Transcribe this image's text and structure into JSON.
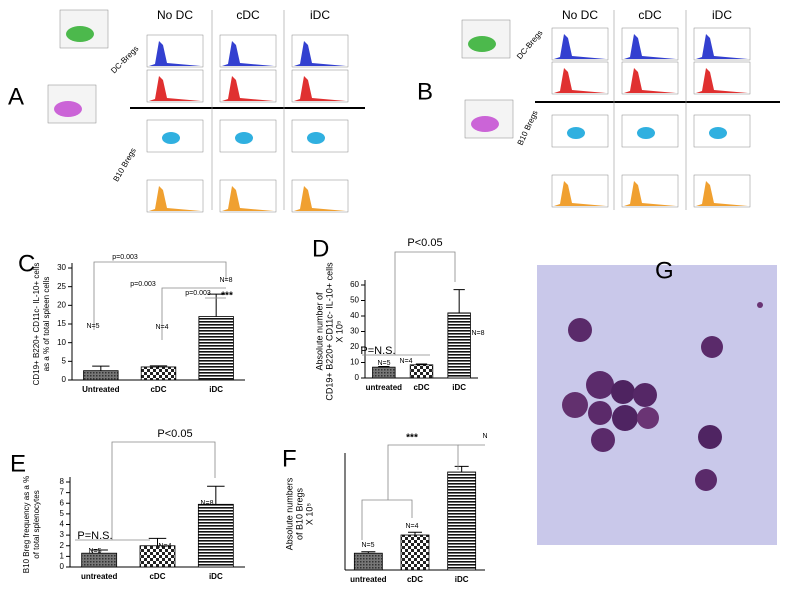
{
  "figure": {
    "panel_a": {
      "label": "A",
      "columns": [
        "No DC",
        "cDC",
        "iDC"
      ],
      "rows": [
        "DC-Bregs",
        "B10 Bregs"
      ]
    },
    "panel_b": {
      "label": "B",
      "columns": [
        "No DC",
        "cDC",
        "iDC"
      ],
      "rows": [
        "DC-Bregs",
        "B10 Bregs"
      ]
    },
    "panel_g": {
      "label": "G"
    }
  },
  "chart_data": [
    {
      "type": "bar",
      "panel": "C",
      "y_label": [
        "CD19+ B220+ CD11c- IL-10+ cells",
        "as a % of total spleen cells"
      ],
      "categories": [
        "Untreated",
        "cDC",
        "iDC"
      ],
      "values": [
        2.5,
        3.5,
        17
      ],
      "errors": [
        1.2,
        0.3,
        6
      ],
      "fills": [
        "dots",
        "checks",
        "stripes"
      ],
      "ylim": [
        0,
        30
      ],
      "yticks": [
        0,
        5,
        10,
        15,
        20,
        25,
        30
      ],
      "annotations": [
        "p=0.003",
        "p=0.003",
        "p=0.003",
        "***",
        "N=5",
        "N=4",
        "N=8"
      ]
    },
    {
      "type": "bar",
      "panel": "D",
      "y_label": [
        "Absolute number of",
        "CD19+ B220+ CD11c- IL-10+ cells",
        "X 10⁵"
      ],
      "categories": [
        "untreated",
        "cDC",
        "iDC"
      ],
      "values": [
        7,
        8.5,
        42
      ],
      "errors": [
        0.4,
        0.5,
        15
      ],
      "fills": [
        "dots",
        "checks",
        "stripes"
      ],
      "ylim": [
        0,
        60
      ],
      "yticks": [
        0,
        10,
        20,
        30,
        40,
        50,
        60
      ],
      "annotations": [
        "P<0.05",
        "P=N.S.",
        "N=5",
        "N=4",
        "N=8"
      ]
    },
    {
      "type": "bar",
      "panel": "E",
      "y_label": [
        "B10 Breg frequency as a %",
        "of total splenocytes"
      ],
      "categories": [
        "untreated",
        "cDC",
        "iDC"
      ],
      "values": [
        1.3,
        2.0,
        5.9
      ],
      "errors": [
        0.3,
        0.7,
        1.7
      ],
      "fills": [
        "dots",
        "checks",
        "stripes"
      ],
      "ylim": [
        0,
        8
      ],
      "yticks": [
        0,
        1,
        2,
        3,
        4,
        5,
        6,
        7,
        8
      ],
      "annotations": [
        "P<0.05",
        "P=N.S.",
        "N=5",
        "N=4",
        "N=8"
      ]
    },
    {
      "type": "bar",
      "panel": "F",
      "y_label": [
        "Absolute numbers",
        "of B10 Bregs",
        "X 10⁵"
      ],
      "categories": [
        "untreated",
        "cDC",
        "iDC"
      ],
      "values": [
        6,
        12.5,
        35
      ],
      "errors": [
        0.5,
        1,
        2
      ],
      "fills": [
        "dots",
        "checks",
        "stripes"
      ],
      "ylim": [
        0,
        40
      ],
      "annotations": [
        "***",
        "N=5",
        "N=4",
        "N"
      ]
    }
  ]
}
